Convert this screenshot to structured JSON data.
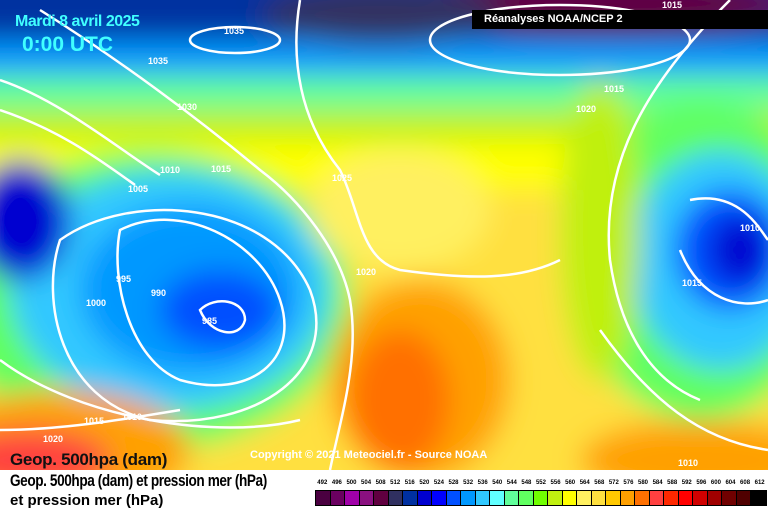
{
  "header": {
    "date": "Mardi 8 avril 2025",
    "time": "0:00 UTC",
    "source": "Réanalyses NOAA/NCEP 2"
  },
  "copyright": "Copyright © 2021 Meteociel.fr - Source NOAA",
  "caption": {
    "line1": "Geop. 500hpa (dam) et pression mer (hPa)",
    "line1_overlap": "Geop. 500hpa (dam)",
    "line2": "et pression mer (hPa)"
  },
  "scale": {
    "labels": [
      "492",
      "496",
      "500",
      "504",
      "508",
      "512",
      "516",
      "520",
      "524",
      "528",
      "532",
      "536",
      "540",
      "544",
      "548",
      "552",
      "556",
      "560",
      "564",
      "568",
      "572",
      "576",
      "580",
      "584",
      "588",
      "592",
      "596",
      "600",
      "604",
      "608",
      "612"
    ],
    "colors": [
      "#4a0040",
      "#6a0060",
      "#a000a8",
      "#8a1080",
      "#600040",
      "#303060",
      "#0030a0",
      "#0000d0",
      "#0000ff",
      "#0050ff",
      "#0098ff",
      "#30c8ff",
      "#60ffff",
      "#60ff9a",
      "#60ff60",
      "#70ff00",
      "#c0f010",
      "#ffff00",
      "#fff060",
      "#ffe040",
      "#ffc800",
      "#ffa000",
      "#ff7000",
      "#ff4040",
      "#ff2800",
      "#ff0000",
      "#d00000",
      "#a00000",
      "#700000",
      "#500000",
      "#000000"
    ]
  },
  "isobars": [
    {
      "label": "1035"
    },
    {
      "label": "1035"
    },
    {
      "label": "1030"
    },
    {
      "label": "1010"
    },
    {
      "label": "1005"
    },
    {
      "label": "1015"
    },
    {
      "label": "1025"
    },
    {
      "label": "1020"
    },
    {
      "label": "995"
    },
    {
      "label": "990"
    },
    {
      "label": "1000"
    },
    {
      "label": "985"
    },
    {
      "label": "1015"
    },
    {
      "label": "1010"
    },
    {
      "label": "1020"
    },
    {
      "label": "1015"
    },
    {
      "label": "1020"
    },
    {
      "label": "1015"
    },
    {
      "label": "1010"
    },
    {
      "label": "1015"
    },
    {
      "label": "1010"
    }
  ]
}
